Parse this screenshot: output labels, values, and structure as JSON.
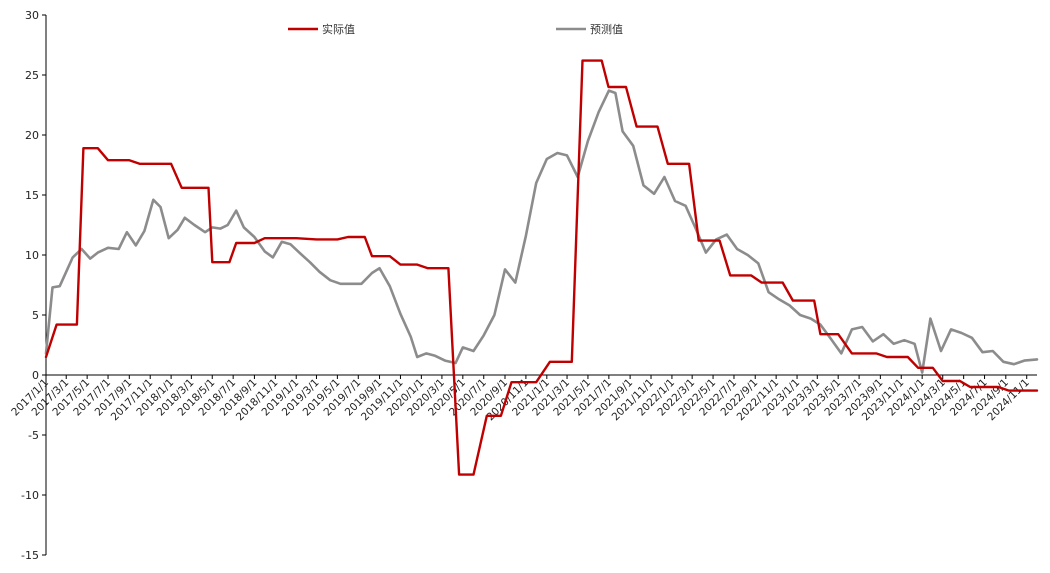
{
  "chart_data": {
    "type": "line",
    "title": "",
    "xlabel": "",
    "ylabel": "",
    "ylim": [
      -15,
      30
    ],
    "yticks": [
      -15,
      -10,
      -5,
      0,
      5,
      10,
      15,
      20,
      25,
      30
    ],
    "x_start": "2017/1/1",
    "x_end": "2024/12/1",
    "x_tick_labels": [
      "2017/1/1",
      "2017/3/1",
      "2017/5/1",
      "2017/7/1",
      "2017/9/1",
      "2017/11/1",
      "2018/1/1",
      "2018/3/1",
      "2018/5/1",
      "2018/7/1",
      "2018/9/1",
      "2018/11/1",
      "2019/1/1",
      "2019/3/1",
      "2019/5/1",
      "2019/7/1",
      "2019/9/1",
      "2019/11/1",
      "2020/1/1",
      "2020/3/1",
      "2020/5/1",
      "2020/7/1",
      "2020/9/1",
      "2020/11/1",
      "2021/1/1",
      "2021/3/1",
      "2021/5/1",
      "2021/7/1",
      "2021/9/1",
      "2021/11/1",
      "2022/1/1",
      "2022/3/1",
      "2022/5/1",
      "2022/7/1",
      "2022/9/1",
      "2022/11/1",
      "2023/1/1",
      "2023/3/1",
      "2023/5/1",
      "2023/7/1",
      "2023/9/1",
      "2023/11/1",
      "2024/1/1",
      "2024/3/1",
      "2024/5/1",
      "2024/7/1",
      "2024/9/1",
      "2024/11/1"
    ],
    "grid": false,
    "legend_position": "top",
    "series": [
      {
        "name": "实际值",
        "color": "#c00000",
        "points": [
          [
            "2017/1/1",
            1.5
          ],
          [
            "2017/2/1",
            4.2
          ],
          [
            "2017/3/15",
            4.2
          ],
          [
            "2017/4/1",
            4.2
          ],
          [
            "2017/4/20",
            18.9
          ],
          [
            "2017/6/1",
            18.9
          ],
          [
            "2017/7/1",
            17.9
          ],
          [
            "2017/9/1",
            17.9
          ],
          [
            "2017/10/1",
            17.6
          ],
          [
            "2017/12/1",
            17.6
          ],
          [
            "2018/1/1",
            17.6
          ],
          [
            "2018/2/1",
            15.6
          ],
          [
            "2018/4/1",
            15.6
          ],
          [
            "2018/4/20",
            15.6
          ],
          [
            "2018/5/1",
            9.4
          ],
          [
            "2018/6/20",
            9.4
          ],
          [
            "2018/7/10",
            11.0
          ],
          [
            "2018/9/1",
            11.0
          ],
          [
            "2018/10/1",
            11.4
          ],
          [
            "2019/1/1",
            11.4
          ],
          [
            "2019/3/1",
            11.3
          ],
          [
            "2019/5/1",
            11.3
          ],
          [
            "2019/6/1",
            11.5
          ],
          [
            "2019/7/20",
            11.5
          ],
          [
            "2019/8/10",
            9.9
          ],
          [
            "2019/10/1",
            9.9
          ],
          [
            "2019/11/1",
            9.2
          ],
          [
            "2019/12/20",
            9.2
          ],
          [
            "2020/1/20",
            8.9
          ],
          [
            "2020/3/1",
            8.9
          ],
          [
            "2020/3/20",
            8.9
          ],
          [
            "2020/4/20",
            -8.3
          ],
          [
            "2020/6/1",
            -8.3
          ],
          [
            "2020/7/10",
            -3.4
          ],
          [
            "2020/8/10",
            -3.4
          ],
          [
            "2020/8/20",
            -3.4
          ],
          [
            "2020/9/20",
            -0.6
          ],
          [
            "2020/12/1",
            -0.6
          ],
          [
            "2021/1/10",
            1.1
          ],
          [
            "2021/3/15",
            1.1
          ],
          [
            "2021/4/15",
            26.2
          ],
          [
            "2021/6/10",
            26.2
          ],
          [
            "2021/6/30",
            24.0
          ],
          [
            "2021/8/20",
            24.0
          ],
          [
            "2021/9/20",
            20.7
          ],
          [
            "2021/11/20",
            20.7
          ],
          [
            "2021/12/20",
            17.6
          ],
          [
            "2022/2/20",
            17.6
          ],
          [
            "2022/3/20",
            11.2
          ],
          [
            "2022/5/20",
            11.2
          ],
          [
            "2022/6/20",
            8.3
          ],
          [
            "2022/8/20",
            8.3
          ],
          [
            "2022/9/20",
            7.7
          ],
          [
            "2022/11/20",
            7.7
          ],
          [
            "2022/12/20",
            6.2
          ],
          [
            "2023/2/20",
            6.2
          ],
          [
            "2023/3/10",
            3.4
          ],
          [
            "2023/5/1",
            3.4
          ],
          [
            "2023/6/10",
            1.8
          ],
          [
            "2023/8/20",
            1.8
          ],
          [
            "2023/9/20",
            1.5
          ],
          [
            "2023/11/20",
            1.5
          ],
          [
            "2023/12/20",
            0.6
          ],
          [
            "2024/2/1",
            0.6
          ],
          [
            "2024/3/1",
            -0.5
          ],
          [
            "2024/4/20",
            -0.5
          ],
          [
            "2024/5/20",
            -1.0
          ],
          [
            "2024/8/10",
            -1.0
          ],
          [
            "2024/9/10",
            -1.3
          ],
          [
            "2024/12/1",
            -1.3
          ]
        ]
      },
      {
        "name": "预测值",
        "color": "#8c8c8c",
        "points": [
          [
            "2017/1/1",
            1.8
          ],
          [
            "2017/1/20",
            7.3
          ],
          [
            "2017/2/10",
            7.4
          ],
          [
            "2017/3/1",
            8.6
          ],
          [
            "2017/3/20",
            9.8
          ],
          [
            "2017/4/15",
            10.5
          ],
          [
            "2017/5/10",
            9.7
          ],
          [
            "2017/6/1",
            10.2
          ],
          [
            "2017/7/1",
            10.6
          ],
          [
            "2017/8/1",
            10.5
          ],
          [
            "2017/8/25",
            11.9
          ],
          [
            "2017/9/20",
            10.8
          ],
          [
            "2017/10/15",
            12.0
          ],
          [
            "2017/11/10",
            14.6
          ],
          [
            "2017/12/1",
            14.0
          ],
          [
            "2017/12/25",
            11.4
          ],
          [
            "2018/1/20",
            12.1
          ],
          [
            "2018/2/10",
            13.1
          ],
          [
            "2018/3/10",
            12.5
          ],
          [
            "2018/4/10",
            11.9
          ],
          [
            "2018/5/1",
            12.3
          ],
          [
            "2018/5/25",
            12.2
          ],
          [
            "2018/6/15",
            12.5
          ],
          [
            "2018/7/10",
            13.7
          ],
          [
            "2018/8/1",
            12.3
          ],
          [
            "2018/9/1",
            11.5
          ],
          [
            "2018/10/1",
            10.3
          ],
          [
            "2018/10/25",
            9.8
          ],
          [
            "2018/11/20",
            11.1
          ],
          [
            "2018/12/15",
            10.9
          ],
          [
            "2019/1/10",
            10.2
          ],
          [
            "2019/2/10",
            9.4
          ],
          [
            "2019/3/10",
            8.6
          ],
          [
            "2019/4/10",
            7.9
          ],
          [
            "2019/5/10",
            7.6
          ],
          [
            "2019/6/10",
            7.6
          ],
          [
            "2019/7/10",
            7.6
          ],
          [
            "2019/8/10",
            8.5
          ],
          [
            "2019/9/1",
            8.9
          ],
          [
            "2019/10/1",
            7.4
          ],
          [
            "2019/11/1",
            5.1
          ],
          [
            "2019/12/1",
            3.2
          ],
          [
            "2019/12/20",
            1.5
          ],
          [
            "2020/1/15",
            1.8
          ],
          [
            "2020/2/10",
            1.6
          ],
          [
            "2020/3/10",
            1.2
          ],
          [
            "2020/4/10",
            1.0
          ],
          [
            "2020/5/1",
            2.3
          ],
          [
            "2020/6/1",
            2.0
          ],
          [
            "2020/7/1",
            3.3
          ],
          [
            "2020/8/1",
            5.0
          ],
          [
            "2020/9/1",
            8.8
          ],
          [
            "2020/10/1",
            7.7
          ],
          [
            "2020/11/1",
            11.6
          ],
          [
            "2020/12/1",
            16.0
          ],
          [
            "2021/1/1",
            18.0
          ],
          [
            "2021/2/1",
            18.5
          ],
          [
            "2021/3/1",
            18.3
          ],
          [
            "2021/4/1",
            16.5
          ],
          [
            "2021/5/1",
            19.5
          ],
          [
            "2021/6/1",
            21.9
          ],
          [
            "2021/7/1",
            23.7
          ],
          [
            "2021/7/20",
            23.5
          ],
          [
            "2021/8/10",
            20.3
          ],
          [
            "2021/9/10",
            19.1
          ],
          [
            "2021/10/10",
            15.8
          ],
          [
            "2021/11/10",
            15.1
          ],
          [
            "2021/12/10",
            16.5
          ],
          [
            "2022/1/10",
            14.5
          ],
          [
            "2022/2/10",
            14.1
          ],
          [
            "2022/3/10",
            12.3
          ],
          [
            "2022/4/10",
            10.2
          ],
          [
            "2022/5/10",
            11.3
          ],
          [
            "2022/6/10",
            11.7
          ],
          [
            "2022/7/10",
            10.5
          ],
          [
            "2022/8/10",
            10.0
          ],
          [
            "2022/9/10",
            9.3
          ],
          [
            "2022/10/10",
            6.9
          ],
          [
            "2022/11/10",
            6.3
          ],
          [
            "2022/12/10",
            5.8
          ],
          [
            "2023/1/10",
            5.0
          ],
          [
            "2023/2/10",
            4.7
          ],
          [
            "2023/3/10",
            4.2
          ],
          [
            "2023/4/10",
            3.0
          ],
          [
            "2023/5/10",
            1.8
          ],
          [
            "2023/6/10",
            3.8
          ],
          [
            "2023/7/10",
            4.0
          ],
          [
            "2023/8/10",
            2.8
          ],
          [
            "2023/9/10",
            3.4
          ],
          [
            "2023/10/10",
            2.6
          ],
          [
            "2023/11/10",
            2.9
          ],
          [
            "2023/12/10",
            2.6
          ],
          [
            "2024/1/1",
            0.2
          ],
          [
            "2024/1/25",
            4.7
          ],
          [
            "2024/2/25",
            2.0
          ],
          [
            "2024/3/25",
            3.8
          ],
          [
            "2024/4/25",
            3.5
          ],
          [
            "2024/5/25",
            3.1
          ],
          [
            "2024/6/25",
            1.9
          ],
          [
            "2024/7/25",
            2.0
          ],
          [
            "2024/8/25",
            1.1
          ],
          [
            "2024/9/25",
            0.9
          ],
          [
            "2024/10/25",
            1.2
          ],
          [
            "2024/12/1",
            1.3
          ]
        ]
      }
    ]
  }
}
